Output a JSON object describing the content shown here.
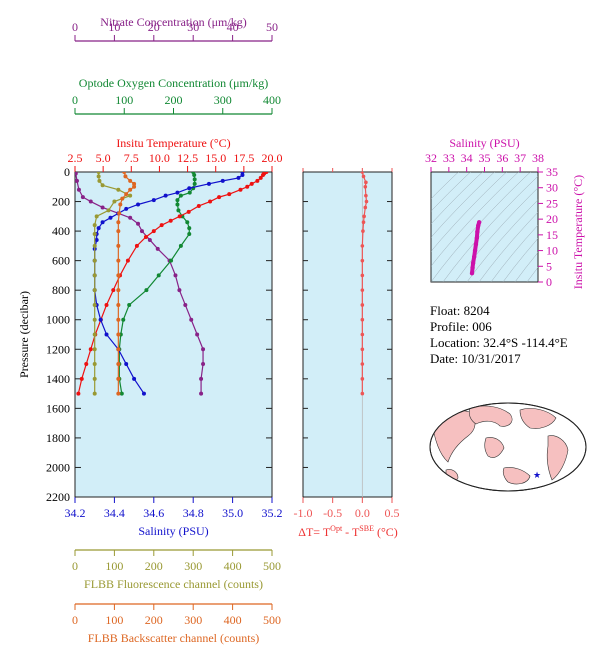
{
  "chart_data": {
    "type": "line",
    "pressure_axis": {
      "label": "Pressure (decibar)",
      "ylim": [
        2200,
        0
      ],
      "ticks": [
        0,
        200,
        400,
        600,
        800,
        1000,
        1200,
        1400,
        1600,
        1800,
        2000,
        2200
      ]
    },
    "top_axes": [
      {
        "key": "nitrate",
        "title": "Nitrate Concentration (μm/kg)",
        "color": "#882288",
        "range": [
          0,
          50
        ],
        "ticks": [
          0,
          10,
          20,
          30,
          40,
          50
        ]
      },
      {
        "key": "oxygen",
        "title": "Optode Oxygen Concentration (μm/kg)",
        "color": "#118833",
        "range": [
          0,
          400
        ],
        "ticks": [
          0,
          100,
          200,
          300,
          400
        ]
      },
      {
        "key": "temperature",
        "title": "Insitu Temperature (°C)",
        "color": "#ee1111",
        "range": [
          2.5,
          20.0
        ],
        "ticks": [
          "2.5",
          "5.0",
          "7.5",
          "10.0",
          "12.5",
          "15.0",
          "17.5",
          "20.0"
        ]
      }
    ],
    "bottom_axes": [
      {
        "key": "salinity",
        "title": "Salinity (PSU)",
        "color": "#1111cc",
        "range": [
          34.2,
          35.2
        ],
        "ticks": [
          "34.2",
          "34.4",
          "34.6",
          "34.8",
          "35.0",
          "35.2"
        ]
      },
      {
        "key": "fluorescence",
        "title": "FLBB Fluorescence channel (counts)",
        "color": "#999933",
        "range": [
          0,
          500
        ],
        "ticks": [
          0,
          100,
          200,
          300,
          400,
          500
        ]
      },
      {
        "key": "backscatter",
        "title": "FLBB Backscatter channel (counts)",
        "color": "#dd6622",
        "range": [
          0,
          500
        ],
        "ticks": [
          0,
          100,
          200,
          300,
          400,
          500
        ]
      }
    ],
    "series": [
      {
        "key": "nitrate",
        "color": "#882288",
        "points": [
          [
            0.2,
            10
          ],
          [
            0.5,
            60
          ],
          [
            1,
            120
          ],
          [
            2,
            170
          ],
          [
            4,
            200
          ],
          [
            7,
            240
          ],
          [
            11,
            280
          ],
          [
            14,
            310
          ],
          [
            16,
            350
          ],
          [
            17,
            400
          ],
          [
            19,
            460
          ],
          [
            21,
            520
          ],
          [
            24,
            600
          ],
          [
            25.5,
            700
          ],
          [
            26.5,
            800
          ],
          [
            28,
            900
          ],
          [
            29.5,
            1000
          ],
          [
            31,
            1100
          ],
          [
            32.5,
            1200
          ],
          [
            32.5,
            1300
          ],
          [
            32,
            1400
          ],
          [
            32,
            1500
          ]
        ]
      },
      {
        "key": "oxygen",
        "color": "#118833",
        "points": [
          [
            240,
            0
          ],
          [
            242,
            20
          ],
          [
            243,
            50
          ],
          [
            243,
            80
          ],
          [
            240,
            110
          ],
          [
            233,
            140
          ],
          [
            215,
            160
          ],
          [
            208,
            190
          ],
          [
            208,
            220
          ],
          [
            210,
            260
          ],
          [
            218,
            300
          ],
          [
            228,
            340
          ],
          [
            232,
            380
          ],
          [
            232,
            420
          ],
          [
            215,
            500
          ],
          [
            195,
            600
          ],
          [
            170,
            700
          ],
          [
            145,
            800
          ],
          [
            110,
            900
          ],
          [
            98,
            1000
          ],
          [
            93,
            1100
          ],
          [
            90,
            1200
          ],
          [
            90,
            1300
          ],
          [
            90,
            1400
          ],
          [
            95,
            1500
          ]
        ]
      },
      {
        "key": "temperature",
        "color": "#ee1111",
        "points": [
          [
            19.5,
            0
          ],
          [
            19.3,
            10
          ],
          [
            19.2,
            20
          ],
          [
            19.0,
            40
          ],
          [
            18.7,
            60
          ],
          [
            18.2,
            80
          ],
          [
            17.8,
            100
          ],
          [
            17.2,
            120
          ],
          [
            16.2,
            150
          ],
          [
            15.3,
            170
          ],
          [
            14.5,
            200
          ],
          [
            13.5,
            230
          ],
          [
            12.6,
            270
          ],
          [
            11.8,
            300
          ],
          [
            11.0,
            330
          ],
          [
            10.2,
            360
          ],
          [
            9.5,
            400
          ],
          [
            8.8,
            440
          ],
          [
            8.0,
            500
          ],
          [
            7.2,
            600
          ],
          [
            6.5,
            700
          ],
          [
            5.9,
            800
          ],
          [
            5.3,
            900
          ],
          [
            4.8,
            1000
          ],
          [
            4.3,
            1100
          ],
          [
            3.9,
            1200
          ],
          [
            3.5,
            1300
          ],
          [
            3.1,
            1400
          ],
          [
            2.8,
            1500
          ]
        ]
      },
      {
        "key": "salinity",
        "color": "#1111cc",
        "points": [
          [
            35.05,
            0
          ],
          [
            35.05,
            20
          ],
          [
            35.03,
            40
          ],
          [
            34.95,
            60
          ],
          [
            34.88,
            80
          ],
          [
            34.78,
            110
          ],
          [
            34.72,
            140
          ],
          [
            34.66,
            160
          ],
          [
            34.6,
            190
          ],
          [
            34.52,
            220
          ],
          [
            34.46,
            250
          ],
          [
            34.42,
            280
          ],
          [
            34.38,
            310
          ],
          [
            34.34,
            340
          ],
          [
            34.32,
            380
          ],
          [
            34.31,
            420
          ],
          [
            34.31,
            460
          ],
          [
            34.3,
            520
          ],
          [
            34.3,
            600
          ],
          [
            34.3,
            700
          ],
          [
            34.3,
            800
          ],
          [
            34.31,
            900
          ],
          [
            34.33,
            1000
          ],
          [
            34.36,
            1100
          ],
          [
            34.42,
            1200
          ],
          [
            34.46,
            1300
          ],
          [
            34.5,
            1400
          ],
          [
            34.55,
            1500
          ]
        ]
      },
      {
        "key": "fluorescence",
        "color": "#999933",
        "points": [
          [
            60,
            0
          ],
          [
            60,
            30
          ],
          [
            62,
            60
          ],
          [
            70,
            90
          ],
          [
            110,
            120
          ],
          [
            140,
            160
          ],
          [
            100,
            200
          ],
          [
            85,
            260
          ],
          [
            55,
            300
          ],
          [
            50,
            360
          ],
          [
            50,
            420
          ],
          [
            50,
            500
          ],
          [
            50,
            600
          ],
          [
            50,
            700
          ],
          [
            50,
            800
          ],
          [
            50,
            900
          ],
          [
            50,
            1000
          ],
          [
            50,
            1100
          ],
          [
            50,
            1200
          ],
          [
            50,
            1300
          ],
          [
            50,
            1400
          ],
          [
            50,
            1500
          ]
        ]
      },
      {
        "key": "backscatter",
        "color": "#dd6622",
        "points": [
          [
            125,
            0
          ],
          [
            128,
            30
          ],
          [
            140,
            60
          ],
          [
            150,
            80
          ],
          [
            150,
            100
          ],
          [
            140,
            120
          ],
          [
            130,
            150
          ],
          [
            120,
            180
          ],
          [
            115,
            220
          ],
          [
            112,
            280
          ],
          [
            110,
            340
          ],
          [
            110,
            400
          ],
          [
            110,
            500
          ],
          [
            110,
            600
          ],
          [
            110,
            700
          ],
          [
            110,
            800
          ],
          [
            110,
            900
          ],
          [
            110,
            1000
          ],
          [
            110,
            1100
          ],
          [
            110,
            1200
          ],
          [
            110,
            1300
          ],
          [
            110,
            1400
          ],
          [
            110,
            1500
          ]
        ]
      }
    ],
    "delta_panel": {
      "xlabel": "ΔT= T",
      "xlabel_sup1": "Opt",
      "xlabel_mid": " - T",
      "xlabel_sup2": "SBE",
      "xlabel_unit": " (°C)",
      "xlim": [
        -1.0,
        0.5
      ],
      "ticks": [
        "-1.0",
        "-0.5",
        "0.0",
        "0.5"
      ],
      "color": "#ee5555",
      "points": [
        [
          0.0,
          0
        ],
        [
          0.02,
          30
        ],
        [
          0.06,
          70
        ],
        [
          0.05,
          100
        ],
        [
          0.06,
          160
        ],
        [
          0.07,
          200
        ],
        [
          0.05,
          240
        ],
        [
          0.03,
          300
        ],
        [
          0.02,
          340
        ],
        [
          0.01,
          400
        ],
        [
          0.0,
          500
        ],
        [
          0.0,
          600
        ],
        [
          0.0,
          700
        ],
        [
          0.0,
          800
        ],
        [
          0.0,
          900
        ],
        [
          0.0,
          1000
        ],
        [
          0.0,
          1100
        ],
        [
          0.0,
          1200
        ],
        [
          0.0,
          1300
        ],
        [
          0.0,
          1400
        ],
        [
          0.0,
          1500
        ]
      ]
    },
    "ts_panel": {
      "title": "Salinity (PSU)",
      "ylabel": "Insitu Temperature (°C)",
      "color": "#cc11aa",
      "xlim": [
        32,
        38
      ],
      "xticks": [
        "32",
        "33",
        "34",
        "35",
        "36",
        "37",
        "38"
      ],
      "ylim": [
        0,
        35
      ],
      "yticks": [
        "0",
        "5",
        "10",
        "15",
        "20",
        "25",
        "30",
        "35"
      ],
      "points": [
        [
          34.3,
          2.8
        ],
        [
          34.33,
          4.5
        ],
        [
          34.36,
          6
        ],
        [
          34.42,
          8
        ],
        [
          34.47,
          10
        ],
        [
          34.52,
          12
        ],
        [
          34.57,
          14
        ],
        [
          34.6,
          16
        ],
        [
          34.65,
          18
        ],
        [
          34.7,
          19
        ]
      ]
    },
    "grid": false,
    "legend": "none"
  },
  "info": {
    "float": "Float:  8204",
    "profile": "Profile:  006",
    "location": "Location:  32.4°S  -114.4°E",
    "date": "Date:  10/31/2017"
  }
}
